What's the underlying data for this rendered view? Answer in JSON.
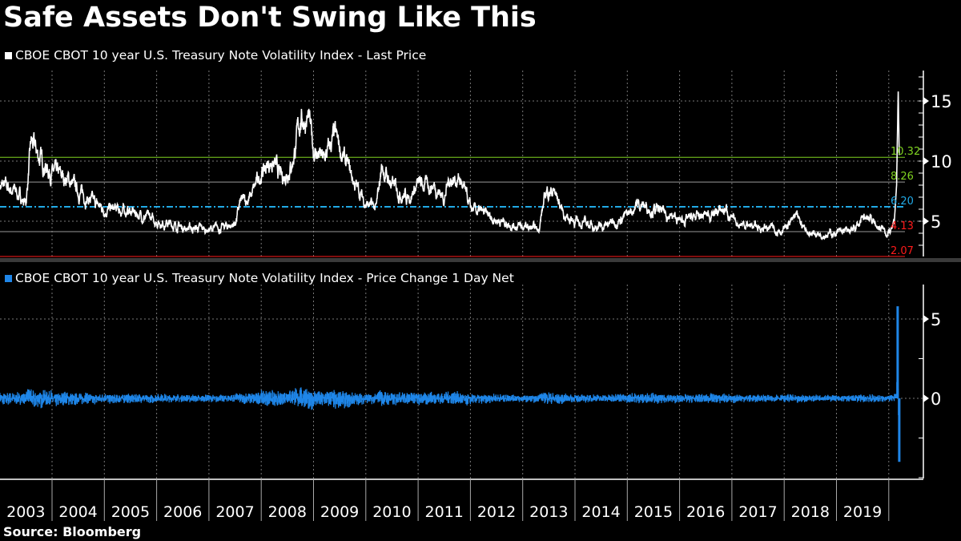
{
  "title": "Safe Assets Don't Swing Like This",
  "source": "Source:  Bloomberg",
  "colors": {
    "level": "#ffffff",
    "change": "#1f86e8",
    "green": "#7fd320",
    "cyan": "#21a9e6",
    "red": "#ff1a1a"
  },
  "chart_data": [
    {
      "type": "line",
      "legend": "CBOE CBOT 10 year U.S. Treasury Note Volatility Index - Last Price",
      "ylim": [
        1.8,
        17.5
      ],
      "yticks": [
        5,
        10,
        15
      ],
      "grid": true,
      "reference_lines": [
        {
          "label": "10.32",
          "value": 10.32,
          "color": "green"
        },
        {
          "label": "8.26",
          "value": 8.26,
          "color": "green"
        },
        {
          "label": "6.20",
          "value": 6.2,
          "color": "cyan"
        },
        {
          "label": "4.13",
          "value": 4.13,
          "color": "red"
        },
        {
          "label": "2.07",
          "value": 2.07,
          "color": "red"
        }
      ],
      "x": [
        2003.0,
        2003.3,
        2003.5,
        2003.6,
        2003.8,
        2004.0,
        2004.3,
        2004.5,
        2004.8,
        2005.0,
        2005.5,
        2006.0,
        2006.5,
        2007.0,
        2007.3,
        2007.5,
        2007.6,
        2007.8,
        2008.0,
        2008.2,
        2008.4,
        2008.6,
        2008.75,
        2008.9,
        2009.0,
        2009.2,
        2009.4,
        2009.6,
        2009.8,
        2010.0,
        2010.2,
        2010.3,
        2010.5,
        2010.8,
        2011.0,
        2011.3,
        2011.5,
        2011.6,
        2011.8,
        2012.0,
        2012.3,
        2012.6,
        2013.0,
        2013.3,
        2013.45,
        2013.6,
        2013.8,
        2014.0,
        2014.5,
        2015.0,
        2015.2,
        2015.5,
        2015.8,
        2016.0,
        2016.5,
        2016.9,
        2017.0,
        2017.5,
        2018.0,
        2018.2,
        2018.5,
        2019.0,
        2019.3,
        2019.6,
        2019.8,
        2020.0,
        2020.1,
        2020.15,
        2020.18,
        2020.2
      ],
      "y": [
        8,
        7.5,
        6.5,
        11.5,
        10,
        9,
        8.5,
        7.5,
        6.5,
        6,
        5.8,
        5,
        4.5,
        4.3,
        4.5,
        4.8,
        6.5,
        7,
        9,
        10,
        8.5,
        10,
        13.5,
        13.5,
        11,
        10,
        12,
        10,
        8,
        6.5,
        6,
        9.5,
        8,
        7,
        8,
        8,
        7,
        8.5,
        8.5,
        6,
        5.5,
        5,
        4.5,
        4.3,
        7.5,
        7.5,
        5.5,
        5,
        4.5,
        5.5,
        6.5,
        6,
        5.5,
        5,
        5.5,
        6,
        5,
        4.5,
        4.3,
        5.3,
        4,
        4,
        4.2,
        5.5,
        4.5,
        4,
        4.5,
        8,
        16,
        10.5
      ]
    },
    {
      "type": "bar",
      "legend": "CBOE CBOT 10 year U.S. Treasury Note Volatility Index - Price Change 1 Day Net",
      "ylim": [
        -5,
        6.5
      ],
      "yticks": [
        0,
        5
      ],
      "grid": true,
      "notes": "Daily net change of the index above; max ~5.8, min ~-4.0 (Mar 2020)",
      "extremes": {
        "max": 5.8,
        "min": -4.0
      }
    }
  ],
  "x_axis": {
    "tick_labels": [
      "2003",
      "2004",
      "2005",
      "2006",
      "2007",
      "2008",
      "2009",
      "2010",
      "2011",
      "2012",
      "2013",
      "2014",
      "2015",
      "2016",
      "2017",
      "2018",
      "2019"
    ]
  }
}
